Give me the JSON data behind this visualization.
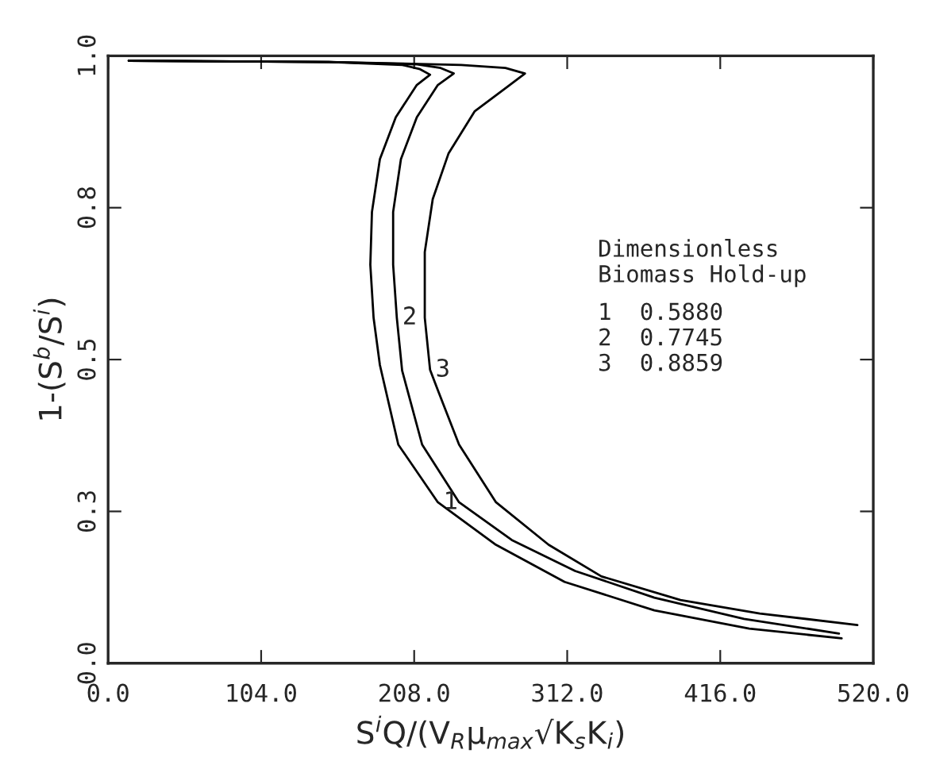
{
  "chart_data": {
    "type": "line",
    "xlabel": "S$^{i}$Q/(V$_{R}$μ$_{max}$√K$_{s}$K$_{i}$)",
    "ylabel": "1-(S$^{b}$/S$^{i}$)",
    "series": [
      {
        "color": "#000000",
        "x": [
          14,
          150,
          200,
          212,
          218.8,
          209.8,
          195.5,
          184.7,
          179.3,
          178.2,
          180.4,
          184.7,
          197.2,
          224.1,
          263.6,
          310.2,
          371.2,
          435.7,
          498.5
        ],
        "values": [
          0.992,
          0.99,
          0.985,
          0.978,
          0.969,
          0.952,
          0.899,
          0.83,
          0.743,
          0.656,
          0.569,
          0.491,
          0.36,
          0.265,
          0.195,
          0.134,
          0.087,
          0.057,
          0.041
        ]
      },
      {
        "color": "#000000",
        "x": [
          14,
          150,
          210,
          226,
          234.9,
          224.1,
          209.8,
          199,
          193.7,
          193.7,
          196.2,
          199.8,
          213.4,
          238.5,
          274.3,
          317.4,
          371.2,
          432.1,
          496.7
        ],
        "values": [
          0.992,
          0.99,
          0.986,
          0.98,
          0.971,
          0.952,
          0.899,
          0.83,
          0.743,
          0.656,
          0.569,
          0.482,
          0.36,
          0.265,
          0.203,
          0.152,
          0.108,
          0.073,
          0.049
        ]
      },
      {
        "color": "#000000",
        "x": [
          14,
          150,
          240,
          270,
          283.3,
          270.8,
          249.2,
          231.3,
          220.6,
          215.2,
          215.2,
          218.8,
          224,
          238.5,
          263.6,
          299.4,
          335.3,
          389,
          442.9,
          509.2
        ],
        "values": [
          0.992,
          0.99,
          0.985,
          0.98,
          0.971,
          0.948,
          0.909,
          0.839,
          0.764,
          0.677,
          0.569,
          0.483,
          0.45,
          0.36,
          0.265,
          0.195,
          0.143,
          0.104,
          0.082,
          0.063
        ]
      }
    ],
    "annotations": [
      {
        "text": "1",
        "x": 224.1,
        "y": 0.265
      },
      {
        "text": "2",
        "x": 196.2,
        "y": 0.569
      },
      {
        "text": "3",
        "x": 218.8,
        "y": 0.483
      },
      "Dimensionless",
      "Biomass Hold-up",
      "1  0.5880",
      "2  0.7745",
      "3  0.8859"
    ],
    "xlim": [
      0,
      520
    ],
    "ylim": [
      0,
      1.0
    ],
    "xticks": [
      {
        "value": 0,
        "label": "0.0"
      },
      {
        "value": 104,
        "label": "104.0"
      },
      {
        "value": 208,
        "label": "208.0"
      },
      {
        "value": 312,
        "label": "312.0"
      },
      {
        "value": 416,
        "label": "416.0"
      },
      {
        "value": 520,
        "label": "520.0"
      }
    ],
    "yticks": [
      {
        "value": 0,
        "label": "0.0"
      },
      {
        "value": 0.25,
        "label": "0.3"
      },
      {
        "value": 0.5,
        "label": "0.5"
      },
      {
        "value": 0.75,
        "label": "0.8"
      },
      {
        "value": 1.0,
        "label": "1.0"
      }
    ],
    "grid": false,
    "legend": false,
    "marker": "none",
    "line_style": "solid"
  }
}
